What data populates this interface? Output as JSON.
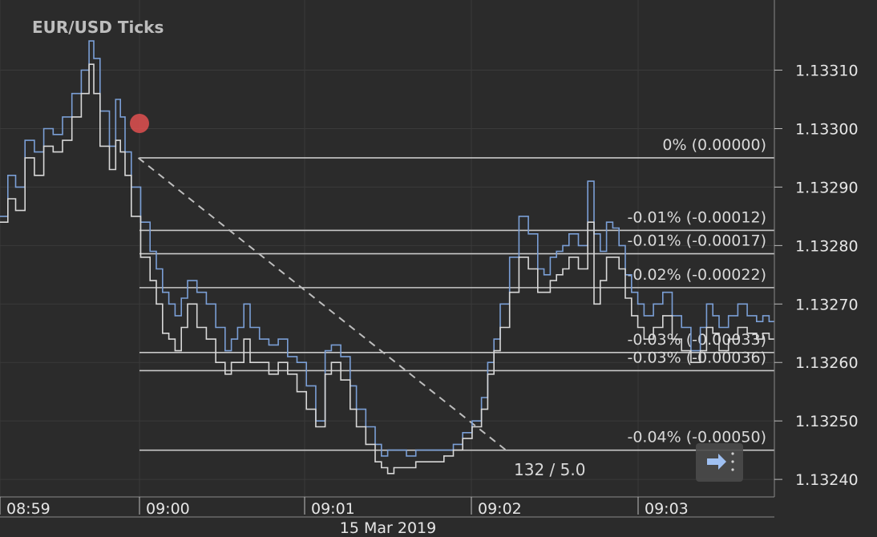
{
  "chart_data": {
    "type": "line",
    "title": "EUR/USD  Ticks",
    "date_label": "15 Mar 2019",
    "ylim": [
      1.13237,
      1.13322
    ],
    "y_ticks": [
      "1.13310",
      "1.13300",
      "1.13290",
      "1.13280",
      "1.13270",
      "1.13260",
      "1.13250",
      "1.13240"
    ],
    "x_ticks": [
      "08:59",
      "09:00",
      "09:01",
      "09:02",
      "09:03"
    ],
    "grid": true,
    "annotation": "132 / 5.0",
    "fib_levels": [
      {
        "label": "0% (0.00000)",
        "value": 1.13295
      },
      {
        "label": "-0.01% (-0.00012)",
        "value": 1.132826
      },
      {
        "label": "-0.01% (-0.00017)",
        "value": 1.132786
      },
      {
        "label": "-0.02% (-0.00022)",
        "value": 1.132728
      },
      {
        "label": "-0.03% (-0.00033)",
        "value": 1.132617
      },
      {
        "label": "-0.03% (-0.00036)",
        "value": 1.132586
      },
      {
        "label": "-0.04% (-0.00050)",
        "value": 1.13245
      }
    ],
    "trend_line": {
      "from": [
        0.5,
        1.13295
      ],
      "to": [
        3.15,
        1.13245
      ]
    },
    "series": [
      {
        "color": "#7b9fd6",
        "x": [
          0.0,
          0.05,
          0.1,
          0.16,
          0.22,
          0.28,
          0.34,
          0.4,
          0.46,
          0.52,
          0.57,
          0.6,
          0.64,
          0.7,
          0.74,
          0.77,
          0.8,
          0.84,
          0.9,
          0.96,
          1.0,
          1.04,
          1.08,
          1.12,
          1.16,
          1.2,
          1.26,
          1.32,
          1.38,
          1.44,
          1.48,
          1.52,
          1.56,
          1.6,
          1.66,
          1.72,
          1.78,
          1.84,
          1.9,
          1.96,
          2.02,
          2.08,
          2.12,
          2.18,
          2.24,
          2.28,
          2.34,
          2.4,
          2.44,
          2.48,
          2.52,
          2.56,
          2.6,
          2.66,
          2.72,
          2.78,
          2.84,
          2.9,
          2.96,
          3.02,
          3.08,
          3.12,
          3.16,
          3.2,
          3.26,
          3.32,
          3.38,
          3.44,
          3.48,
          3.52,
          3.56,
          3.6,
          3.64,
          3.7,
          3.76,
          3.8,
          3.84,
          3.88,
          3.92,
          3.96,
          4.0,
          4.04,
          4.08,
          4.12,
          4.18,
          4.24,
          4.3,
          4.36,
          4.42,
          4.48,
          4.52,
          4.56,
          4.6,
          4.66,
          4.72,
          4.78,
          4.84,
          4.88,
          4.92,
          4.96
        ],
        "values": [
          1.13285,
          1.13292,
          1.1329,
          1.13298,
          1.13296,
          1.133,
          1.13299,
          1.13302,
          1.13306,
          1.1331,
          1.13315,
          1.13312,
          1.13303,
          1.13297,
          1.13305,
          1.13302,
          1.13296,
          1.1329,
          1.13284,
          1.13279,
          1.13276,
          1.13272,
          1.1327,
          1.13268,
          1.13271,
          1.13274,
          1.13272,
          1.1327,
          1.13266,
          1.13262,
          1.13264,
          1.13266,
          1.1327,
          1.13266,
          1.13264,
          1.13263,
          1.13264,
          1.13261,
          1.1326,
          1.13256,
          1.1325,
          1.13262,
          1.13263,
          1.13261,
          1.13256,
          1.13252,
          1.13249,
          1.13246,
          1.13244,
          1.13245,
          1.13245,
          1.13245,
          1.13244,
          1.13245,
          1.13245,
          1.13245,
          1.13245,
          1.13246,
          1.13248,
          1.1325,
          1.13254,
          1.1326,
          1.13264,
          1.1327,
          1.13278,
          1.13285,
          1.13282,
          1.13276,
          1.13275,
          1.13278,
          1.13279,
          1.1328,
          1.13282,
          1.1328,
          1.13291,
          1.13282,
          1.13279,
          1.13284,
          1.13283,
          1.1328,
          1.13275,
          1.13272,
          1.1327,
          1.13268,
          1.1327,
          1.13272,
          1.13268,
          1.13266,
          1.13262,
          1.13266,
          1.1327,
          1.13268,
          1.13266,
          1.13268,
          1.1327,
          1.13268,
          1.13267,
          1.13268,
          1.13267,
          1.13268
        ]
      },
      {
        "color": "#d8d8d8",
        "x": [
          0.0,
          0.05,
          0.1,
          0.16,
          0.22,
          0.28,
          0.34,
          0.4,
          0.46,
          0.52,
          0.57,
          0.6,
          0.64,
          0.7,
          0.74,
          0.77,
          0.8,
          0.84,
          0.9,
          0.96,
          1.0,
          1.04,
          1.08,
          1.12,
          1.16,
          1.2,
          1.26,
          1.32,
          1.38,
          1.44,
          1.48,
          1.52,
          1.56,
          1.6,
          1.66,
          1.72,
          1.78,
          1.84,
          1.9,
          1.96,
          2.02,
          2.08,
          2.12,
          2.18,
          2.24,
          2.28,
          2.34,
          2.4,
          2.44,
          2.48,
          2.52,
          2.56,
          2.6,
          2.66,
          2.72,
          2.78,
          2.84,
          2.9,
          2.96,
          3.02,
          3.08,
          3.12,
          3.16,
          3.2,
          3.26,
          3.32,
          3.38,
          3.44,
          3.48,
          3.52,
          3.56,
          3.6,
          3.64,
          3.7,
          3.76,
          3.8,
          3.84,
          3.88,
          3.92,
          3.96,
          4.0,
          4.04,
          4.08,
          4.12,
          4.18,
          4.24,
          4.3,
          4.36,
          4.42,
          4.48,
          4.52,
          4.56,
          4.6,
          4.66,
          4.72,
          4.78,
          4.84,
          4.88,
          4.92,
          4.96
        ],
        "values": [
          1.13284,
          1.13288,
          1.13286,
          1.13295,
          1.13292,
          1.13297,
          1.13296,
          1.13298,
          1.13302,
          1.13306,
          1.13311,
          1.13306,
          1.13297,
          1.13293,
          1.13298,
          1.13296,
          1.13292,
          1.13285,
          1.13278,
          1.13274,
          1.1327,
          1.13265,
          1.13264,
          1.13262,
          1.13266,
          1.1327,
          1.13266,
          1.13264,
          1.1326,
          1.13258,
          1.1326,
          1.1326,
          1.13264,
          1.1326,
          1.1326,
          1.13258,
          1.1326,
          1.13258,
          1.13255,
          1.13252,
          1.13249,
          1.13258,
          1.1326,
          1.13257,
          1.13252,
          1.13249,
          1.13246,
          1.13243,
          1.13242,
          1.13241,
          1.13242,
          1.13242,
          1.13242,
          1.13243,
          1.13243,
          1.13243,
          1.13244,
          1.13245,
          1.13247,
          1.13249,
          1.13252,
          1.13258,
          1.13262,
          1.13266,
          1.13272,
          1.13278,
          1.13276,
          1.13272,
          1.13272,
          1.13274,
          1.13275,
          1.13276,
          1.13278,
          1.13276,
          1.13284,
          1.1327,
          1.13274,
          1.13278,
          1.13278,
          1.13276,
          1.13271,
          1.13268,
          1.13266,
          1.13264,
          1.13266,
          1.13268,
          1.13264,
          1.13262,
          1.1326,
          1.13262,
          1.13266,
          1.13265,
          1.13262,
          1.13264,
          1.13266,
          1.13265,
          1.13264,
          1.13265,
          1.13264,
          1.13265
        ]
      }
    ]
  }
}
